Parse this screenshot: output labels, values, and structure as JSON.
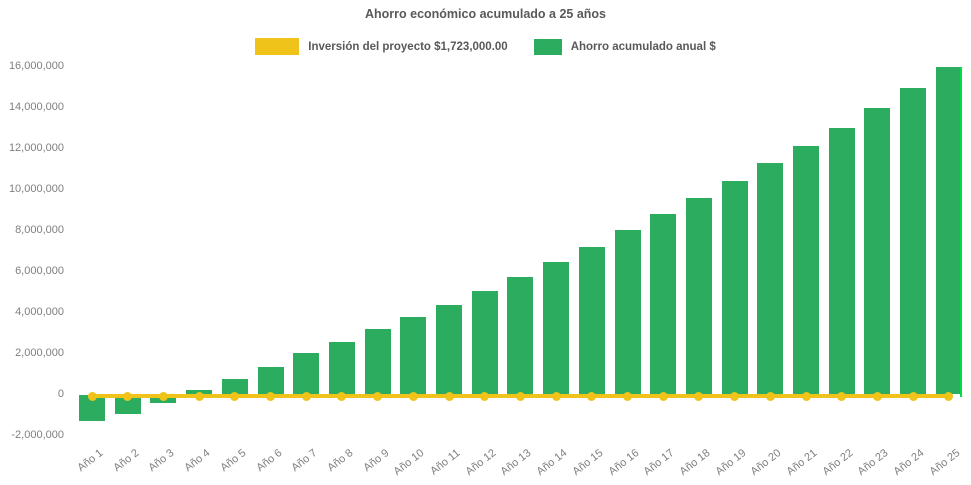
{
  "title": "Ahorro económico acumulado a 25 años",
  "legend": {
    "items": [
      {
        "label": "Inversión del proyecto $1,723,000.00",
        "color": "#EFC319"
      },
      {
        "label": "Ahorro acumulado anual $",
        "color": "#2BAC5E"
      }
    ]
  },
  "colors": {
    "bar_green": "#2BAC5E",
    "line_yellow": "#EFC319",
    "last_bar_edge": "#00DB4A",
    "title_text": "#595959",
    "axis_text": "#7F7F7F",
    "background": "#FFFFFF"
  },
  "chart_data": {
    "type": "bar",
    "title": "Ahorro económico acumulado a 25 años",
    "categories": [
      "Año 1",
      "Año 2",
      "Año 3",
      "Año 4",
      "Año 5",
      "Año 6",
      "Año 7",
      "Año 8",
      "Año 9",
      "Año 10",
      "Año 11",
      "Año 12",
      "Año 13",
      "Año 14",
      "Año 15",
      "Año 16",
      "Año 17",
      "Año 18",
      "Año 19",
      "Año 20",
      "Año 21",
      "Año 22",
      "Año 23",
      "Año 24",
      "Año 25"
    ],
    "series": [
      {
        "name": "Ahorro acumulado anual $",
        "type": "bar",
        "color": "#2BAC5E",
        "values": [
          -1310000,
          -940000,
          -420000,
          230000,
          740000,
          1330000,
          2010000,
          2580000,
          3180000,
          3770000,
          4370000,
          5060000,
          5750000,
          6480000,
          7210000,
          8020000,
          8800000,
          9570000,
          10410000,
          11310000,
          12120000,
          13010000,
          13960000,
          14940000,
          15960000
        ]
      },
      {
        "name": "Inversión del proyecto $1,723,000.00",
        "type": "line",
        "color": "#EFC319",
        "marker": "circle",
        "values": [
          0,
          0,
          0,
          0,
          0,
          0,
          0,
          0,
          0,
          0,
          0,
          0,
          0,
          0,
          0,
          0,
          0,
          0,
          0,
          0,
          0,
          0,
          0,
          0,
          0
        ]
      }
    ],
    "xlabel": "",
    "ylabel": "",
    "ylim": [
      -2000000,
      16000000
    ],
    "ytick_step": 2000000,
    "ytick_values": [
      16000000,
      14000000,
      12000000,
      10000000,
      8000000,
      6000000,
      4000000,
      2000000,
      0,
      -2000000
    ],
    "ytick_labels": [
      "16,000,000",
      "14,000,000",
      "12,000,000",
      "10,000,000",
      "8,000,000",
      "6,000,000",
      "4,000,000",
      "2,000,000",
      "0",
      "-2,000,000"
    ],
    "grid": false,
    "legend_position": "top"
  }
}
